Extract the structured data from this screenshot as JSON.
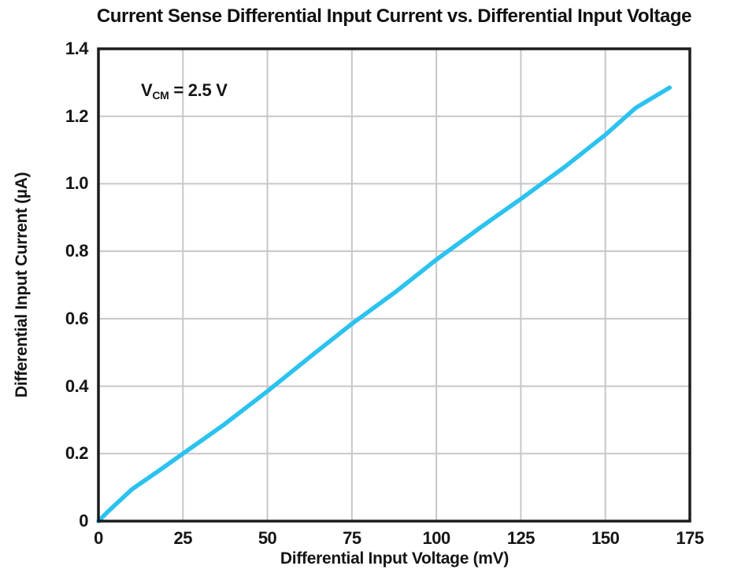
{
  "chart_data": {
    "type": "line",
    "title": "Current Sense Differential Input Current vs. Differential Input Voltage",
    "xlabel": "Differential Input Voltage (mV)",
    "ylabel": "Differential Input Current (µA)",
    "xlim": [
      0,
      175
    ],
    "ylim": [
      0,
      1.4
    ],
    "x_ticks": [
      0,
      25,
      50,
      75,
      100,
      125,
      150,
      175
    ],
    "x_tick_labels": [
      "0",
      "25",
      "50",
      "75",
      "100",
      "125",
      "150",
      "175"
    ],
    "y_ticks": [
      0,
      0.2,
      0.4,
      0.6,
      0.8,
      1.0,
      1.2,
      1.4
    ],
    "y_tick_labels": [
      "0",
      "0.2",
      "0.4",
      "0.6",
      "0.8",
      "1.0",
      "1.2",
      "1.4"
    ],
    "grid": true,
    "legend_position": "none",
    "annotation": {
      "var": "V",
      "sub": "CM",
      "rest": " = 2.5 V",
      "text": "VCM = 2.5 V"
    },
    "series": [
      {
        "name": "Differential Input Current",
        "color": "#2CC2EF",
        "points": [
          [
            0,
            0
          ],
          [
            3,
            0.03
          ],
          [
            10,
            0.095
          ],
          [
            18,
            0.15
          ],
          [
            25,
            0.2
          ],
          [
            37,
            0.285
          ],
          [
            50,
            0.385
          ],
          [
            63,
            0.49
          ],
          [
            75,
            0.585
          ],
          [
            88,
            0.68
          ],
          [
            100,
            0.775
          ],
          [
            113,
            0.87
          ],
          [
            125,
            0.955
          ],
          [
            138,
            1.05
          ],
          [
            150,
            1.145
          ],
          [
            159,
            1.225
          ],
          [
            169,
            1.285
          ]
        ]
      }
    ],
    "colors": {
      "line": "#2CC2EF",
      "grid": "#c7c7ca",
      "frame": "#1d1d1f",
      "text": "#151517",
      "background": "#ffffff"
    }
  }
}
